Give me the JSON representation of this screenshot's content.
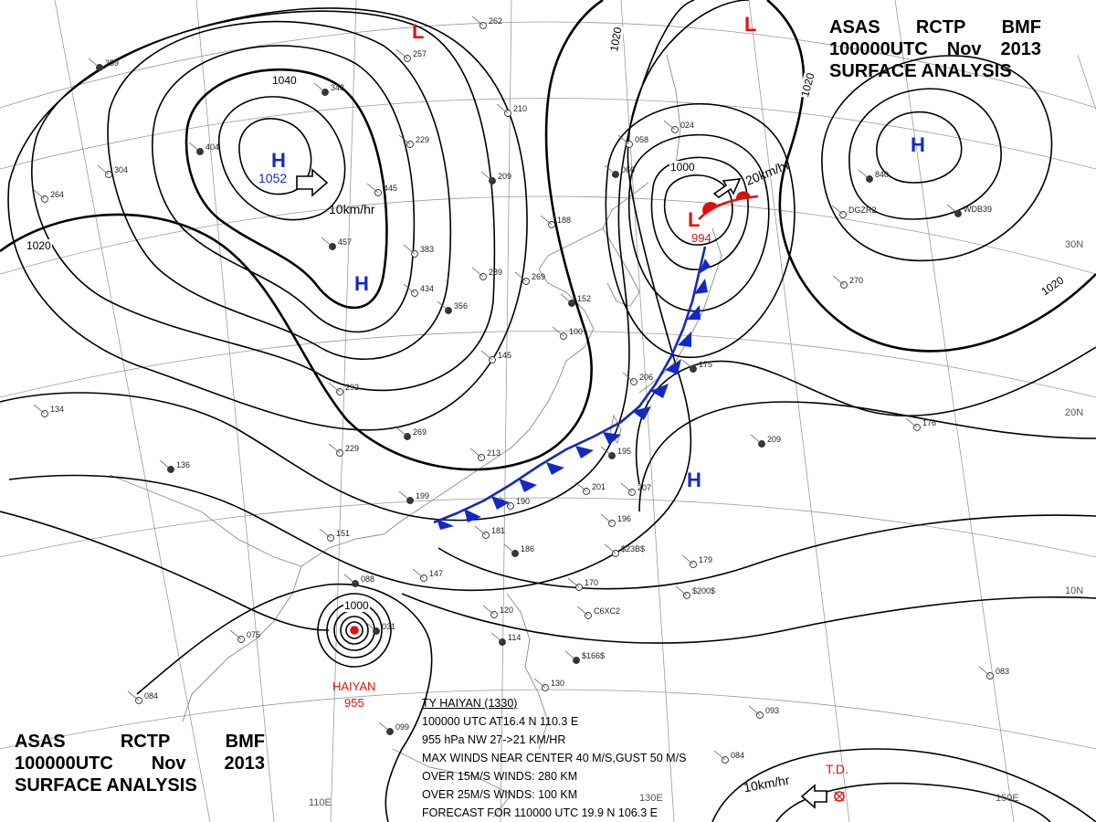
{
  "header": {
    "line1": [
      "ASAS",
      "RCTP",
      "BMF"
    ],
    "line2": [
      "100000UTC",
      "Nov",
      "2013"
    ],
    "line3": "SURFACE ANALYSIS"
  },
  "pressure_systems": [
    {
      "kind": "H",
      "label": "H",
      "value": "1052"
    },
    {
      "kind": "H",
      "label": "H",
      "value": ""
    },
    {
      "kind": "H",
      "label": "H",
      "value": ""
    },
    {
      "kind": "H",
      "label": "H",
      "value": ""
    },
    {
      "kind": "L",
      "label": "L",
      "value": "994"
    },
    {
      "kind": "L",
      "label": "L",
      "value": ""
    },
    {
      "kind": "L",
      "label": "L",
      "value": ""
    }
  ],
  "isobar_labels": [
    "1040",
    "1020",
    "1020",
    "1020",
    "1020",
    "1000",
    "1000"
  ],
  "motion_labels": [
    "10km/hr",
    "20km/hr",
    "10km/hr"
  ],
  "latitude_labels": [
    "30N",
    "20N",
    "10N"
  ],
  "longitude_labels": [
    "110E",
    "130E",
    "150E"
  ],
  "typhoon": {
    "name": "HAIYAN",
    "pressure": "955",
    "bulletin": [
      "TY  HAIYAN  (1330)",
      "100000  UTC   AT16.4 N  110.3 E",
      "955 hPa  NW  27->21 KM/HR",
      "MAX WINDS NEAR CENTER 40 M/S,GUST 50 M/S",
      "OVER 15M/S WINDS: 280 KM",
      "OVER 25M/S WINDS: 100 KM",
      "FORECAST FOR  110000 UTC 19.9 N  106.3 E"
    ]
  },
  "tropical_depression": {
    "label": "T.D."
  },
  "station_values": [
    "359",
    "262",
    "257",
    "343",
    "024",
    "058",
    "066",
    "229",
    "210",
    "404",
    "304",
    "445",
    "209",
    "188",
    "264",
    "457",
    "289",
    "269",
    "152",
    "383",
    "434",
    "356",
    "100",
    "145",
    "175",
    "206",
    "292",
    "269",
    "229",
    "213",
    "195",
    "201",
    "207",
    "199",
    "190",
    "181",
    "186",
    "196",
    "176",
    "209",
    "151",
    "147",
    "088",
    "170",
    "179",
    "031",
    "075",
    "120",
    "114",
    "130",
    "084",
    "099",
    "093",
    "083",
    "136",
    "134",
    "084",
    "840",
    "270",
    "DGZR2",
    "WDB39",
    "$23B$",
    "$200$",
    "$166$",
    "C6XC2"
  ],
  "colors": {
    "high": "#1428c8",
    "low": "#e01010",
    "cold_front": "#1428c8",
    "warm_front": "#e01010",
    "isobar": "#000000",
    "graticule": "#9a9a9a",
    "coast": "#8a8a8a"
  }
}
